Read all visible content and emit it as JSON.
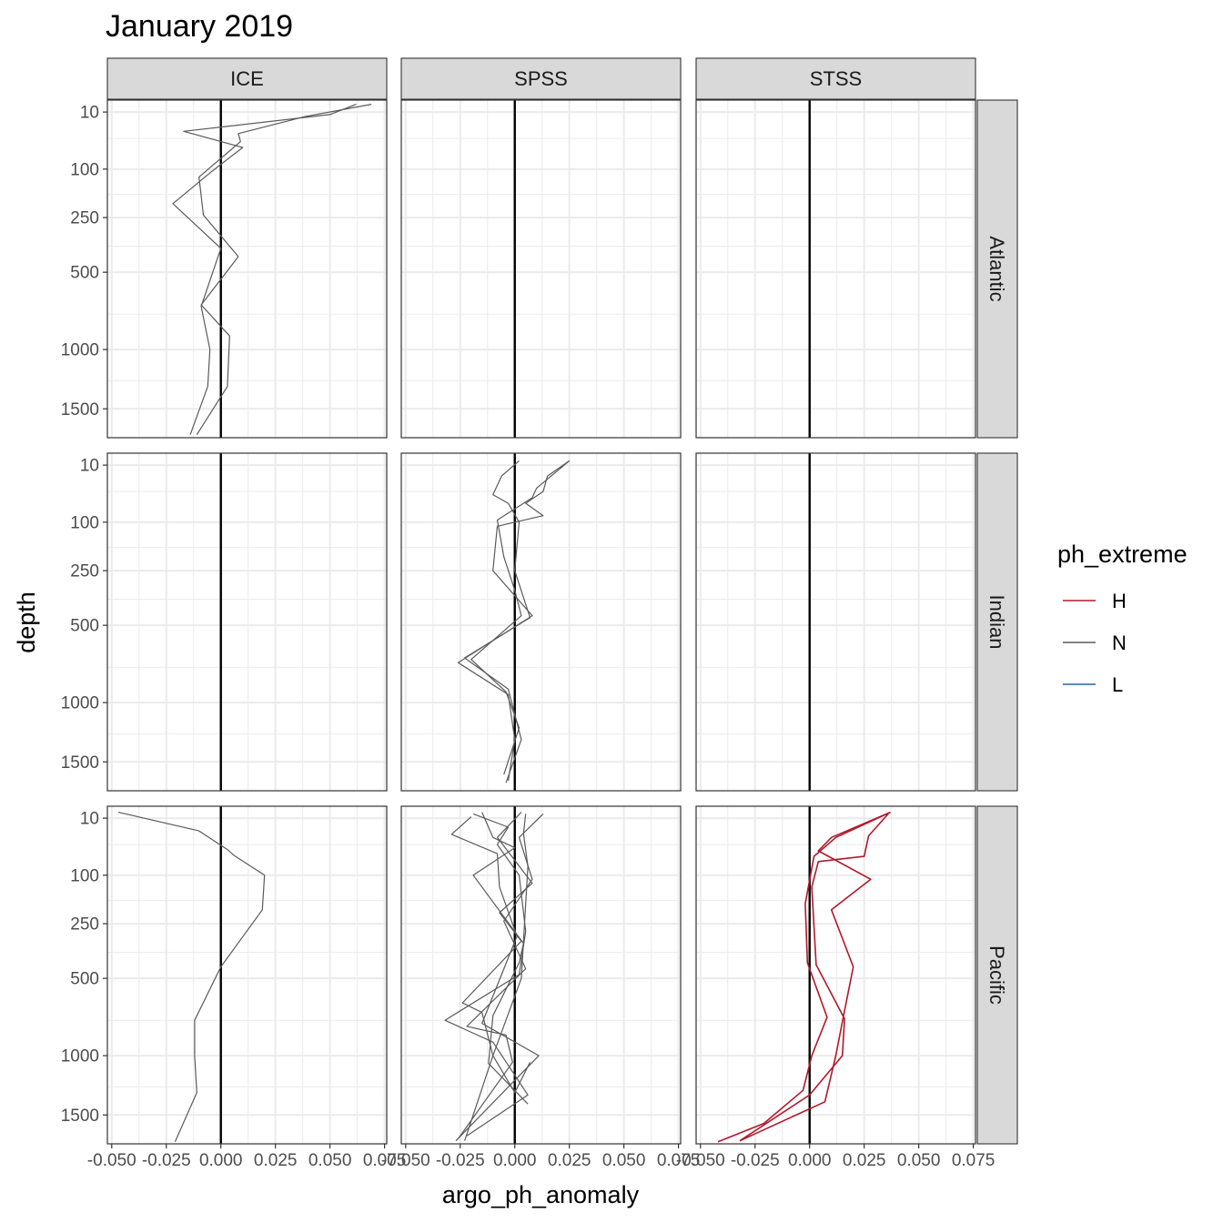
{
  "chart_data": {
    "type": "line",
    "title": "January 2019",
    "xlabel": "argo_ph_anomaly",
    "ylabel": "depth",
    "xlim": [
      -0.052,
      0.076
    ],
    "ylim_sqrt": [
      3,
      1780
    ],
    "y_reversed": true,
    "y_scale": "sqrt",
    "x_ticks": [
      -0.05,
      -0.025,
      0.0,
      0.025,
      0.05,
      0.075
    ],
    "x_tick_labels": [
      "-0.050",
      "-0.025",
      "0.000",
      "0.025",
      "0.050",
      "0.075"
    ],
    "x_minor_ticks": [
      -0.0375,
      -0.0125,
      0.0125,
      0.0375,
      0.0625
    ],
    "y_ticks": [
      10,
      100,
      250,
      500,
      1000,
      1500
    ],
    "y_tick_labels": [
      "10",
      "100",
      "250",
      "500",
      "1000",
      "1500"
    ],
    "y_minor_ticks": [
      40,
      170,
      370,
      750,
      1250
    ],
    "columns": [
      "ICE",
      "SPSS",
      "STSS"
    ],
    "rows": [
      "Atlantic",
      "Indian",
      "Pacific"
    ],
    "legend": {
      "title": "ph_extreme",
      "position": "right",
      "entries": [
        {
          "key": "H",
          "label": "H",
          "color": "#b2182b"
        },
        {
          "key": "N",
          "label": "N",
          "color": "#5a5a5a"
        },
        {
          "key": "L",
          "label": "L",
          "color": "#2166ac"
        }
      ]
    },
    "grid": true,
    "zero_line": true,
    "panels": [
      {
        "row": "Atlantic",
        "col": "ICE",
        "lines": [
          {
            "group": "N",
            "points": [
              [
                0.062,
                5
              ],
              [
                0.05,
                12
              ],
              [
                -0.017,
                30
              ],
              [
                0.01,
                55
              ],
              [
                -0.004,
                105
              ],
              [
                -0.022,
                200
              ],
              [
                0.0,
                380
              ],
              [
                -0.009,
                700
              ],
              [
                -0.005,
                1000
              ],
              [
                -0.006,
                1300
              ],
              [
                -0.014,
                1750
              ]
            ]
          },
          {
            "group": "N",
            "points": [
              [
                0.069,
                5
              ],
              [
                0.038,
                14
              ],
              [
                0.008,
                33
              ],
              [
                0.009,
                45
              ],
              [
                -0.01,
                120
              ],
              [
                -0.008,
                240
              ],
              [
                0.008,
                420
              ],
              [
                -0.009,
                690
              ],
              [
                0.004,
                900
              ],
              [
                0.003,
                1300
              ],
              [
                -0.011,
                1750
              ]
            ]
          }
        ]
      },
      {
        "row": "Atlantic",
        "col": "SPSS",
        "lines": []
      },
      {
        "row": "Atlantic",
        "col": "STSS",
        "lines": []
      },
      {
        "row": "Indian",
        "col": "ICE",
        "lines": []
      },
      {
        "row": "Indian",
        "col": "SPSS",
        "lines": [
          {
            "group": "N",
            "points": [
              [
                0.025,
                7
              ],
              [
                0.015,
                20
              ],
              [
                0.013,
                40
              ],
              [
                0.005,
                60
              ],
              [
                0.013,
                85
              ],
              [
                -0.008,
                110
              ],
              [
                -0.01,
                250
              ],
              [
                0.008,
                450
              ],
              [
                -0.026,
                720
              ],
              [
                -0.003,
                940
              ],
              [
                0.0,
                1300
              ],
              [
                -0.003,
                1680
              ]
            ]
          },
          {
            "group": "N",
            "points": [
              [
                0.025,
                7
              ],
              [
                0.01,
                35
              ],
              [
                0.008,
                50
              ],
              [
                -0.008,
                95
              ],
              [
                -0.005,
                200
              ],
              [
                0.0,
                330
              ],
              [
                0.003,
                450
              ],
              [
                -0.02,
                700
              ],
              [
                -0.004,
                920
              ],
              [
                0.002,
                1200
              ],
              [
                -0.005,
                1620
              ]
            ]
          },
          {
            "group": "N",
            "points": [
              [
                0.002,
                7
              ],
              [
                -0.006,
                20
              ],
              [
                -0.01,
                45
              ],
              [
                -0.003,
                60
              ],
              [
                0.002,
                100
              ],
              [
                0.0,
                250
              ],
              [
                0.007,
                460
              ],
              [
                -0.023,
                690
              ],
              [
                -0.003,
                900
              ],
              [
                0.003,
                1300
              ],
              [
                -0.004,
                1700
              ]
            ]
          }
        ]
      },
      {
        "row": "Indian",
        "col": "STSS",
        "lines": []
      },
      {
        "row": "Pacific",
        "col": "ICE",
        "lines": [
          {
            "group": "N",
            "points": [
              [
                -0.047,
                6
              ],
              [
                -0.01,
                22
              ],
              [
                0.003,
                48
              ],
              [
                0.006,
                58
              ],
              [
                0.02,
                100
              ],
              [
                0.019,
                200
              ],
              [
                0.0,
                440
              ],
              [
                -0.012,
                750
              ],
              [
                -0.012,
                1000
              ],
              [
                -0.011,
                1300
              ],
              [
                -0.021,
                1760
              ]
            ]
          }
        ]
      },
      {
        "row": "Pacific",
        "col": "SPSS",
        "lines": [
          {
            "group": "N",
            "points": [
              [
                0.013,
                7
              ],
              [
                0.002,
                30
              ],
              [
                0.008,
                110
              ],
              [
                -0.005,
                240
              ],
              [
                0.005,
                450
              ],
              [
                -0.022,
                790
              ],
              [
                -0.004,
                850
              ],
              [
                -0.001,
                1050
              ],
              [
                -0.026,
                1730
              ]
            ]
          },
          {
            "group": "N",
            "points": [
              [
                -0.019,
                7
              ],
              [
                -0.003,
                18
              ],
              [
                -0.008,
                40
              ],
              [
                0.002,
                100
              ],
              [
                0.005,
                280
              ],
              [
                0.002,
                480
              ],
              [
                -0.032,
                750
              ],
              [
                -0.01,
                900
              ],
              [
                0.006,
                1320
              ],
              [
                -0.022,
                1700
              ]
            ]
          },
          {
            "group": "N",
            "points": [
              [
                -0.02,
                9
              ],
              [
                -0.029,
                26
              ],
              [
                -0.008,
                55
              ],
              [
                -0.007,
                130
              ],
              [
                0.001,
                300
              ],
              [
                -0.015,
                770
              ],
              [
                0.011,
                1000
              ],
              [
                -0.027,
                1750
              ]
            ]
          },
          {
            "group": "N",
            "points": [
              [
                0.003,
                6
              ],
              [
                -0.008,
                30
              ],
              [
                0.008,
                120
              ],
              [
                -0.007,
                210
              ],
              [
                0.003,
                320
              ],
              [
                -0.024,
                640
              ],
              [
                -0.015,
                700
              ],
              [
                -0.01,
                1000
              ],
              [
                -0.023,
                1750
              ]
            ]
          },
          {
            "group": "N",
            "points": [
              [
                -0.015,
                6
              ],
              [
                -0.01,
                30
              ],
              [
                0.0,
                45
              ],
              [
                -0.019,
                100
              ],
              [
                0.004,
                330
              ],
              [
                0.002,
                420
              ],
              [
                -0.01,
                720
              ],
              [
                -0.012,
                1060
              ],
              [
                0.006,
                1400
              ]
            ]
          },
          {
            "group": "N",
            "points": [
              [
                0.005,
                7
              ],
              [
                0.004,
                25
              ],
              [
                0.006,
                80
              ],
              [
                0.003,
                500
              ],
              [
                -0.01,
                1000
              ],
              [
                0.0,
                1300
              ],
              [
                0.007,
                1050
              ]
            ]
          }
        ]
      },
      {
        "row": "Pacific",
        "col": "STSS",
        "lines": [
          {
            "group": "H",
            "points": [
              [
                0.037,
                6
              ],
              [
                0.01,
                30
              ],
              [
                0.004,
                50
              ],
              [
                0.028,
                110
              ],
              [
                0.01,
                200
              ],
              [
                0.02,
                440
              ],
              [
                0.015,
                760
              ],
              [
                0.012,
                1000
              ],
              [
                0.007,
                1380
              ],
              [
                -0.032,
                1750
              ]
            ]
          },
          {
            "group": "H",
            "points": [
              [
                0.037,
                6
              ],
              [
                0.012,
                30
              ],
              [
                0.002,
                60
              ],
              [
                -0.002,
                180
              ],
              [
                -0.001,
                420
              ],
              [
                0.008,
                730
              ],
              [
                0.001,
                1000
              ],
              [
                -0.003,
                1280
              ],
              [
                -0.021,
                1580
              ],
              [
                -0.042,
                1760
              ]
            ]
          },
          {
            "group": "H",
            "points": [
              [
                0.036,
                7
              ],
              [
                0.027,
                28
              ],
              [
                0.025,
                60
              ],
              [
                0.004,
                70
              ],
              [
                0.001,
                130
              ],
              [
                0.003,
                430
              ],
              [
                0.016,
                740
              ],
              [
                0.015,
                1000
              ],
              [
                0.0,
                1320
              ],
              [
                -0.032,
                1750
              ]
            ]
          }
        ]
      }
    ]
  }
}
